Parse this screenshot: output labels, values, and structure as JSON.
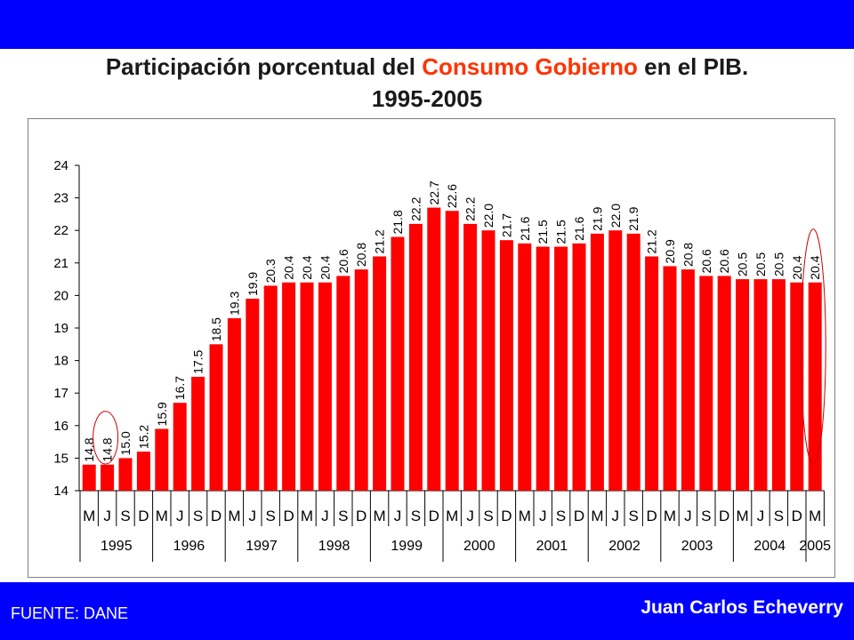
{
  "header": {
    "title_part1": "Participación porcentual  del ",
    "title_highlight": "Consumo Gobierno",
    "title_part2": " en el PIB.",
    "title_line2": "1995-2005"
  },
  "footer": {
    "source": "FUENTE: DANE",
    "author": "Juan Carlos Echeverry"
  },
  "colors": {
    "band": "#0000ff",
    "bar": "#ff0000",
    "highlight_title": "#ff3300",
    "circle": "#cc0000"
  },
  "chart_data": {
    "type": "bar",
    "title": "",
    "xlabel": "",
    "ylabel": "",
    "ylim": [
      14,
      24
    ],
    "yticks": [
      14,
      15,
      16,
      17,
      18,
      19,
      20,
      21,
      22,
      23,
      24
    ],
    "categories": [
      "M",
      "J",
      "S",
      "D",
      "M",
      "J",
      "S",
      "D",
      "M",
      "J",
      "S",
      "D",
      "M",
      "J",
      "S",
      "D",
      "M",
      "J",
      "S",
      "D",
      "M",
      "J",
      "S",
      "D",
      "M",
      "J",
      "S",
      "D",
      "M",
      "J",
      "S",
      "D",
      "M",
      "J",
      "S",
      "D",
      "M",
      "J",
      "S",
      "D",
      "M"
    ],
    "values": [
      14.8,
      14.8,
      15.0,
      15.2,
      15.9,
      16.7,
      17.5,
      18.5,
      19.3,
      19.9,
      20.3,
      20.4,
      20.4,
      20.4,
      20.6,
      20.8,
      21.2,
      21.8,
      22.2,
      22.7,
      22.6,
      22.2,
      22.0,
      21.7,
      21.6,
      21.5,
      21.5,
      21.6,
      21.9,
      22.0,
      21.9,
      21.2,
      20.9,
      20.8,
      20.6,
      20.6,
      20.5,
      20.5,
      20.5,
      20.4,
      20.4
    ],
    "value_labels": [
      "14.8",
      "14.8",
      "15.0",
      "15.2",
      "15.9",
      "16.7",
      "17.5",
      "18.5",
      "19.3",
      "19.9",
      "20.3",
      "20.4",
      "20.4",
      "20.4",
      "20.6",
      "20.8",
      "21.2",
      "21.8",
      "22.2",
      "22.7",
      "22.6",
      "22.2",
      "22.0",
      "21.7",
      "21.6",
      "21.5",
      "21.5",
      "21.6",
      "21.9",
      "22.0",
      "21.9",
      "21.2",
      "20.9",
      "20.8",
      "20.6",
      "20.6",
      "20.5",
      "20.5",
      "20.5",
      "20.4",
      "20.4"
    ],
    "years": [
      {
        "label": "1995",
        "start": 0,
        "count": 4
      },
      {
        "label": "1996",
        "start": 4,
        "count": 4
      },
      {
        "label": "1997",
        "start": 8,
        "count": 4
      },
      {
        "label": "1998",
        "start": 12,
        "count": 4
      },
      {
        "label": "1999",
        "start": 16,
        "count": 4
      },
      {
        "label": "2000",
        "start": 20,
        "count": 4
      },
      {
        "label": "2001",
        "start": 24,
        "count": 4
      },
      {
        "label": "2002",
        "start": 28,
        "count": 4
      },
      {
        "label": "2003",
        "start": 32,
        "count": 4
      },
      {
        "label": "2004",
        "start": 36,
        "count": 4
      },
      {
        "label": "2005",
        "start": 40,
        "count": 1
      }
    ],
    "highlighted_bars": [
      1,
      40
    ],
    "grid": false,
    "legend": "none"
  }
}
